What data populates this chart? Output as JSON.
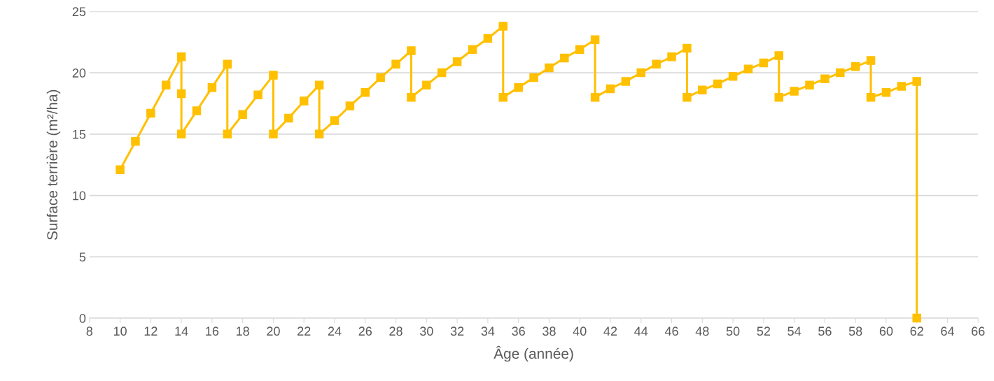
{
  "chart_data": {
    "type": "line",
    "xlabel": "Âge (année)",
    "ylabel": "Surface terrière (m²/ha)",
    "marker": "square",
    "line_style": "solid",
    "grid": "y",
    "series": [
      {
        "color": "#ffc000",
        "x": [
          10,
          11,
          12,
          13,
          14,
          14,
          14,
          15,
          16,
          17,
          17,
          18,
          19,
          20,
          20,
          21,
          22,
          23,
          23,
          24,
          25,
          26,
          27,
          28,
          29,
          29,
          30,
          31,
          32,
          33,
          34,
          35,
          35,
          36,
          37,
          38,
          39,
          40,
          41,
          41,
          42,
          43,
          44,
          45,
          46,
          47,
          47,
          48,
          49,
          50,
          51,
          52,
          53,
          53,
          54,
          55,
          56,
          57,
          58,
          59,
          59,
          60,
          61,
          62,
          62
        ],
        "values": [
          12.1,
          14.4,
          16.7,
          19.0,
          21.3,
          18.3,
          15,
          16.9,
          18.8,
          20.7,
          15,
          16.6,
          18.2,
          19.8,
          15,
          16.3,
          17.7,
          19.0,
          15,
          16.1,
          17.3,
          18.4,
          19.6,
          20.7,
          21.8,
          18,
          19.0,
          20.0,
          20.9,
          21.9,
          22.8,
          23.8,
          18,
          18.8,
          19.6,
          20.4,
          21.2,
          21.9,
          22.7,
          18,
          18.7,
          19.3,
          20.0,
          20.7,
          21.3,
          22.0,
          18,
          18.6,
          19.1,
          19.7,
          20.3,
          20.8,
          21.4,
          18,
          18.5,
          19.0,
          19.5,
          20.0,
          20.5,
          21.0,
          18,
          18.4,
          18.9,
          19.3,
          0
        ]
      }
    ],
    "xlim": [
      8,
      66
    ],
    "xticks": [
      8,
      10,
      12,
      14,
      16,
      18,
      20,
      22,
      24,
      26,
      28,
      30,
      32,
      34,
      36,
      38,
      40,
      42,
      44,
      46,
      48,
      50,
      52,
      54,
      56,
      58,
      60,
      62,
      64,
      66
    ],
    "ylim": [
      0,
      25
    ],
    "yticks": [
      0,
      5,
      10,
      15,
      20,
      25
    ]
  }
}
